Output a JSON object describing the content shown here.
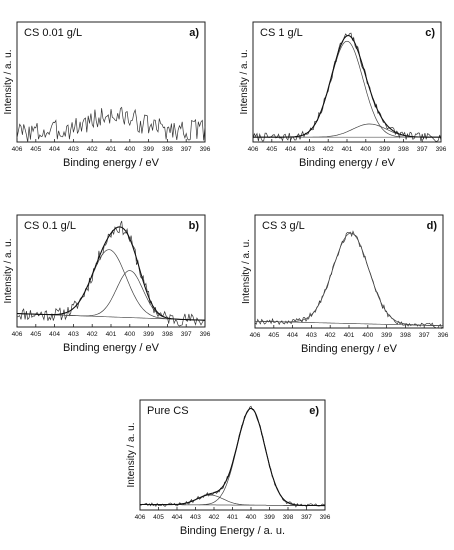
{
  "chart_data": [
    {
      "type": "line",
      "title": "CS 0.01 g/L",
      "panel_label": "a)",
      "xlabel": "Binding energy / eV",
      "ylabel": "Intensity / a. u.",
      "x_ticks": [
        "406",
        "405",
        "404",
        "403",
        "402",
        "401",
        "400",
        "399",
        "398",
        "397",
        "396"
      ],
      "xlim": [
        406,
        396
      ],
      "ylim": [
        0,
        1
      ],
      "raw": {
        "noise": 0.09,
        "seed": 3
      },
      "baseline": [
        0.08,
        0.1
      ],
      "components": [
        {
          "center": 400.9,
          "amp": 0.13,
          "sigma": 1.3
        }
      ],
      "show_components": false,
      "show_envelope": false
    },
    {
      "type": "line",
      "title": "CS 1 g/L",
      "panel_label": "c)",
      "xlabel": "Binding energy / eV",
      "ylabel": "Intensity / a. u.",
      "x_ticks": [
        "406",
        "405",
        "404",
        "403",
        "402",
        "401",
        "400",
        "399",
        "398",
        "397",
        "396"
      ],
      "xlim": [
        406,
        396
      ],
      "ylim": [
        0,
        1
      ],
      "raw": {
        "noise": 0.035,
        "seed": 7
      },
      "baseline": [
        0.04,
        0.04
      ],
      "components": [
        {
          "center": 401.0,
          "amp": 0.8,
          "sigma": 0.85
        },
        {
          "center": 399.8,
          "amp": 0.11,
          "sigma": 0.9
        }
      ],
      "show_components": true,
      "show_envelope": true
    },
    {
      "type": "line",
      "title": "CS 0.1 g/L",
      "panel_label": "b)",
      "xlabel": "Binding energy / eV",
      "ylabel": "Intensity / a. u.",
      "x_ticks": [
        "406",
        "405",
        "404",
        "403",
        "402",
        "401",
        "400",
        "399",
        "398",
        "397",
        "396"
      ],
      "xlim": [
        406,
        396
      ],
      "ylim": [
        0,
        1
      ],
      "raw": {
        "noise": 0.06,
        "seed": 11
      },
      "baseline": [
        0.12,
        0.06
      ],
      "components": [
        {
          "center": 401.1,
          "amp": 0.6,
          "sigma": 0.9
        },
        {
          "center": 400.0,
          "amp": 0.42,
          "sigma": 0.7
        }
      ],
      "show_components": true,
      "show_envelope": true
    },
    {
      "type": "line",
      "title": "CS 3 g/L",
      "panel_label": "d)",
      "xlabel": "Binding energy / eV",
      "ylabel": "Intensity / a. u.",
      "x_ticks": [
        "406",
        "405",
        "404",
        "403",
        "402",
        "401",
        "400",
        "399",
        "398",
        "397",
        "396"
      ],
      "xlim": [
        406,
        396
      ],
      "ylim": [
        0,
        1
      ],
      "raw": {
        "noise": 0.025,
        "seed": 19
      },
      "baseline": [
        0.06,
        0.02
      ],
      "components": [
        {
          "center": 400.9,
          "amp": 0.8,
          "sigma": 0.95
        }
      ],
      "show_components": true,
      "show_envelope": false
    },
    {
      "type": "line",
      "title": "Pure CS",
      "panel_label": "e)",
      "xlabel": "Binding Energy / a. u.",
      "ylabel": "Intensity / a. u.",
      "x_ticks": [
        "406",
        "405",
        "404",
        "403",
        "402",
        "401",
        "400",
        "399",
        "398",
        "397",
        "396"
      ],
      "xlim": [
        406,
        396
      ],
      "ylim": [
        0,
        1
      ],
      "raw": {
        "noise": 0.018,
        "seed": 23
      },
      "baseline": [
        0.05,
        0.04
      ],
      "components": [
        {
          "center": 400.0,
          "amp": 0.88,
          "sigma": 0.75
        },
        {
          "center": 402.2,
          "amp": 0.09,
          "sigma": 0.7
        }
      ],
      "show_components": true,
      "show_envelope": true
    }
  ]
}
